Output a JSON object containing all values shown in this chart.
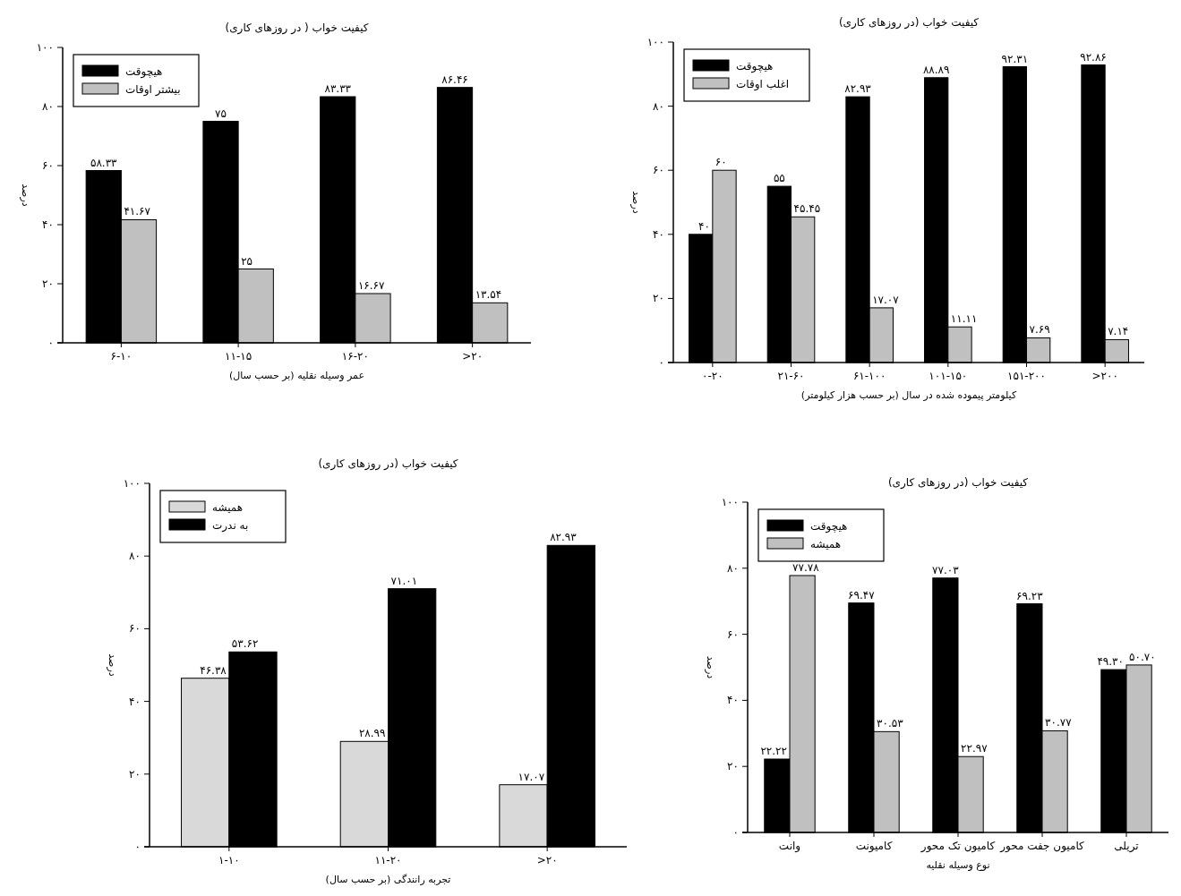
{
  "chart_data": [
    {
      "type": "bar",
      "title": "کیفیت خواب ( در روزهای کاری)",
      "xlabel": "عمر وسیله نقلیه (بر حسب سال)",
      "ylabel": "درصد",
      "categories": [
        "۶-۱۰",
        "۱۱-۱۵",
        "۱۶-۲۰",
        ">۲۰"
      ],
      "series": [
        {
          "name": "هیچوقت",
          "color": "#000000",
          "values": [
            58.33,
            75,
            83.33,
            86.46
          ],
          "value_labels": [
            "۵۸.۳۳",
            "۷۵",
            "۸۳.۳۳",
            "۸۶.۴۶"
          ]
        },
        {
          "name": "بیشتر اوقات",
          "color": "#c0c0c0",
          "values": [
            41.67,
            25,
            16.67,
            13.54
          ],
          "value_labels": [
            "۴۱.۶۷",
            "۲۵",
            "۱۶.۶۷",
            "۱۳.۵۴"
          ]
        }
      ],
      "ylim": [
        0,
        100
      ],
      "yticks": [
        {
          "value": 0,
          "label": "۰"
        },
        {
          "value": 20,
          "label": "۲۰"
        },
        {
          "value": 40,
          "label": "۴۰"
        },
        {
          "value": 60,
          "label": "۶۰"
        },
        {
          "value": 80,
          "label": "۸۰"
        },
        {
          "value": 100,
          "label": "۱۰۰"
        }
      ],
      "legend": "top left"
    },
    {
      "type": "bar",
      "title": "کیفیت خواب (در روزهای کاری)",
      "xlabel": "کیلومتر پیموده شده در سال (بر حسب هزار کیلومتر)",
      "ylabel": "درصد",
      "categories": [
        "۰-۲۰",
        "۲۱-۶۰",
        "۶۱-۱۰۰",
        "۱۰۱-۱۵۰",
        "۱۵۱-۲۰۰",
        ">۲۰۰"
      ],
      "series": [
        {
          "name": "هیچوقت",
          "color": "#000000",
          "values": [
            40,
            55,
            82.93,
            88.89,
            92.31,
            92.86
          ],
          "value_labels": [
            "۴۰",
            "۵۵",
            "۸۲.۹۳",
            "۸۸.۸۹",
            "۹۲.۳۱",
            "۹۲.۸۶"
          ]
        },
        {
          "name": "اغلب اوقات",
          "color": "#c0c0c0",
          "values": [
            60,
            45.45,
            17.07,
            11.11,
            7.69,
            7.14
          ],
          "value_labels": [
            "۶۰",
            "۴۵.۴۵",
            "۱۷.۰۷",
            "۱۱.۱۱",
            "۷.۶۹",
            "۷.۱۴"
          ]
        }
      ],
      "ylim": [
        0,
        100
      ],
      "yticks": [
        {
          "value": 0,
          "label": "۰"
        },
        {
          "value": 20,
          "label": "۲۰"
        },
        {
          "value": 40,
          "label": "۴۰"
        },
        {
          "value": 60,
          "label": "۶۰"
        },
        {
          "value": 80,
          "label": "۸۰"
        },
        {
          "value": 100,
          "label": "۱۰۰"
        }
      ],
      "legend": "top left"
    },
    {
      "type": "bar",
      "title": "کیفیت خواب (در روزهای کاری)",
      "xlabel": "تجربه رانندگی (بر حسب سال)",
      "ylabel": "درصد",
      "categories": [
        "۱-۱۰",
        "۱۱-۲۰",
        ">۲۰"
      ],
      "series": [
        {
          "name": "همیشه",
          "color": "#d9d9d9",
          "values": [
            46.38,
            28.99,
            17.07
          ],
          "value_labels": [
            "۴۶.۳۸",
            "۲۸.۹۹",
            "۱۷.۰۷"
          ]
        },
        {
          "name": "به ندرت",
          "color": "#000000",
          "values": [
            53.62,
            71.01,
            82.93
          ],
          "value_labels": [
            "۵۳.۶۲",
            "۷۱.۰۱",
            "۸۲.۹۳"
          ]
        }
      ],
      "ylim": [
        0,
        100
      ],
      "yticks": [
        {
          "value": 0,
          "label": "۰"
        },
        {
          "value": 20,
          "label": "۲۰"
        },
        {
          "value": 40,
          "label": "۴۰"
        },
        {
          "value": 60,
          "label": "۶۰"
        },
        {
          "value": 80,
          "label": "۸۰"
        },
        {
          "value": 100,
          "label": "۱۰۰"
        }
      ],
      "legend": "top left"
    },
    {
      "type": "bar",
      "title": "کیفیت خواب (در روزهای کاری)",
      "xlabel": "نوع وسیله نقلیه",
      "ylabel": "درصد",
      "categories": [
        "وانت",
        "کامیونت",
        "کامیون تک محور",
        "کامیون جفت محور",
        "تریلی"
      ],
      "series": [
        {
          "name": "هیچوقت",
          "color": "#000000",
          "values": [
            22.22,
            69.47,
            77.03,
            69.23,
            49.3
          ],
          "value_labels": [
            "۲۲.۲۲",
            "۶۹.۴۷",
            "۷۷.۰۳",
            "۶۹.۲۳",
            "۴۹.۳۰"
          ]
        },
        {
          "name": "همیشه",
          "color": "#c0c0c0",
          "values": [
            77.78,
            30.53,
            22.97,
            30.77,
            50.7
          ],
          "value_labels": [
            "۷۷.۷۸",
            "۳۰.۵۳",
            "۲۲.۹۷",
            "۳۰.۷۷",
            "۵۰.۷۰"
          ]
        }
      ],
      "ylim": [
        0,
        100
      ],
      "yticks": [
        {
          "value": 0,
          "label": "۰"
        },
        {
          "value": 20,
          "label": "۲۰"
        },
        {
          "value": 40,
          "label": "۴۰"
        },
        {
          "value": 60,
          "label": "۶۰"
        },
        {
          "value": 80,
          "label": "۸۰"
        },
        {
          "value": 100,
          "label": "۱۰۰"
        }
      ],
      "legend": "top left"
    }
  ]
}
